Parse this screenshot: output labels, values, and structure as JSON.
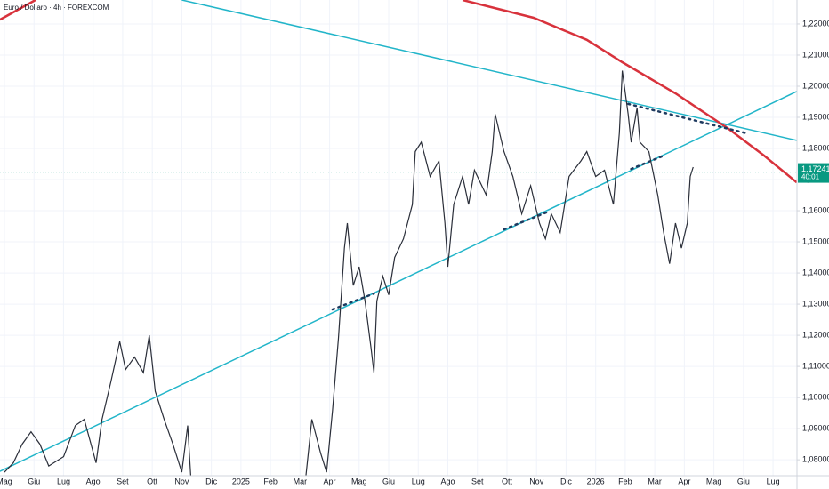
{
  "chart_data": {
    "type": "line",
    "title": "Euro / Dollaro · 4h · FOREXCOM",
    "xlim": [
      -0.15,
      26.81
    ],
    "ylim": [
      1.0749,
      1.2277
    ],
    "grid": true,
    "xticks": [
      {
        "value": 0,
        "label": "Mag"
      },
      {
        "value": 1,
        "label": "Giu"
      },
      {
        "value": 2,
        "label": "Lug"
      },
      {
        "value": 3,
        "label": "Ago"
      },
      {
        "value": 4,
        "label": "Set"
      },
      {
        "value": 5,
        "label": "Ott"
      },
      {
        "value": 6,
        "label": "Nov"
      },
      {
        "value": 7,
        "label": "Dic"
      },
      {
        "value": 8,
        "label": "2025"
      },
      {
        "value": 9,
        "label": "Feb"
      },
      {
        "value": 10,
        "label": "Mar"
      },
      {
        "value": 11,
        "label": "Apr"
      },
      {
        "value": 12,
        "label": "Mag"
      },
      {
        "value": 13,
        "label": "Giu"
      },
      {
        "value": 14,
        "label": "Lug"
      },
      {
        "value": 15,
        "label": "Ago"
      },
      {
        "value": 16,
        "label": "Set"
      },
      {
        "value": 17,
        "label": "Ott"
      },
      {
        "value": 18,
        "label": "Nov"
      },
      {
        "value": 19,
        "label": "Dic"
      },
      {
        "value": 20,
        "label": "2026"
      },
      {
        "value": 21,
        "label": "Feb"
      },
      {
        "value": 22,
        "label": "Mar"
      },
      {
        "value": 23,
        "label": "Apr"
      },
      {
        "value": 24,
        "label": "Mag"
      },
      {
        "value": 25,
        "label": "Giu"
      },
      {
        "value": 26,
        "label": "Lug"
      }
    ],
    "yticks": [
      {
        "value": 1.08,
        "label": "1,08000"
      },
      {
        "value": 1.09,
        "label": "1,09000"
      },
      {
        "value": 1.1,
        "label": "1,10000"
      },
      {
        "value": 1.11,
        "label": "1,11000"
      },
      {
        "value": 1.12,
        "label": "1,12000"
      },
      {
        "value": 1.13,
        "label": "1,13000"
      },
      {
        "value": 1.14,
        "label": "1,14000"
      },
      {
        "value": 1.15,
        "label": "1,15000"
      },
      {
        "value": 1.16,
        "label": "1,16000"
      },
      {
        "value": 1.17,
        "label": "1,17000"
      },
      {
        "value": 1.18,
        "label": "1,18000"
      },
      {
        "value": 1.19,
        "label": "1,19000"
      },
      {
        "value": 1.2,
        "label": "1,20000"
      },
      {
        "value": 1.21,
        "label": "1,21000"
      },
      {
        "value": 1.22,
        "label": "1,22000"
      }
    ],
    "last_price": {
      "value": 1.17241,
      "label": "1,17241",
      "color": "#089981"
    },
    "countdown": "40:01",
    "series": [
      {
        "color": "#2a2e39",
        "x": [
          0.0,
          0.3,
          0.6,
          0.9,
          1.2,
          1.5,
          2.0,
          2.4,
          2.7,
          3.1,
          3.3,
          3.6,
          3.9,
          4.1,
          4.4,
          4.7,
          4.9,
          5.1,
          5.4,
          5.7,
          6.0,
          6.2,
          6.3,
          8.0,
          10.2,
          10.4,
          10.7,
          10.9,
          11.1,
          11.3,
          11.5,
          11.6,
          11.8,
          12.0,
          12.2,
          12.4,
          12.5,
          12.6,
          12.8,
          13.0,
          13.2,
          13.5,
          13.8,
          13.9,
          14.1,
          14.4,
          14.7,
          14.9,
          15.0,
          15.2,
          15.5,
          15.7,
          15.9,
          16.3,
          16.5,
          16.6,
          16.9,
          17.2,
          17.5,
          17.8,
          18.1,
          18.3,
          18.5,
          18.8,
          19.1,
          19.5,
          19.7,
          20.0,
          20.3,
          20.6,
          20.8,
          20.9,
          21.1,
          21.2,
          21.4,
          21.5,
          21.8,
          22.1,
          22.3,
          22.5,
          22.7,
          22.9,
          23.1,
          23.2,
          23.3
        ],
        "values": [
          1.076,
          1.079,
          1.085,
          1.089,
          1.085,
          1.078,
          1.081,
          1.091,
          1.093,
          1.079,
          1.093,
          1.105,
          1.118,
          1.109,
          1.113,
          1.108,
          1.12,
          1.102,
          1.093,
          1.085,
          1.076,
          1.091,
          1.075,
          null,
          1.075,
          1.093,
          1.082,
          1.076,
          1.096,
          1.119,
          1.148,
          1.156,
          1.136,
          1.142,
          1.131,
          1.116,
          1.108,
          1.131,
          1.139,
          1.133,
          1.145,
          1.151,
          1.162,
          1.179,
          1.182,
          1.171,
          1.176,
          1.156,
          1.142,
          1.162,
          1.171,
          1.162,
          1.173,
          1.165,
          1.179,
          1.191,
          1.179,
          1.171,
          1.159,
          1.168,
          1.156,
          1.151,
          1.159,
          1.153,
          1.171,
          1.176,
          1.179,
          1.171,
          1.173,
          1.162,
          1.185,
          1.205,
          1.191,
          1.182,
          1.193,
          1.182,
          1.179,
          1.165,
          1.153,
          1.143,
          1.156,
          1.148,
          1.156,
          1.171,
          1.174
        ]
      }
    ],
    "drawings": [
      {
        "color": "#22b5c9",
        "style": "solid",
        "x": [
          6.0,
          26.8
        ],
        "y": [
          1.2277,
          1.1826
        ]
      },
      {
        "color": "#22b5c9",
        "style": "solid",
        "x": [
          -0.15,
          26.8
        ],
        "y": [
          1.0763,
          1.1983
        ]
      },
      {
        "color": "#d8323c",
        "style": "solid",
        "x": [
          -0.15,
          1.05,
          8.0,
          15.5,
          17.9,
          19.7,
          20.9,
          22.7,
          24.5,
          25.7,
          26.8
        ],
        "y": [
          1.2214,
          1.2277,
          null,
          1.2277,
          1.222,
          1.2149,
          1.2077,
          1.1977,
          1.1863,
          1.1777,
          1.1691
        ]
      },
      {
        "color": "#1e3a5f",
        "style": "dotted",
        "x": [
          11.1,
          12.5
        ],
        "y": [
          1.1283,
          1.1334
        ]
      },
      {
        "color": "#1e3a5f",
        "style": "dotted",
        "x": [
          16.9,
          18.4
        ],
        "y": [
          1.154,
          1.1597
        ]
      },
      {
        "color": "#1e3a5f",
        "style": "dotted",
        "x": [
          21.1,
          25.1
        ],
        "y": [
          1.1943,
          1.1849
        ]
      },
      {
        "color": "#1e3a5f",
        "style": "dotted",
        "x": [
          21.2,
          22.3
        ],
        "y": [
          1.1734,
          1.1777
        ]
      }
    ]
  }
}
